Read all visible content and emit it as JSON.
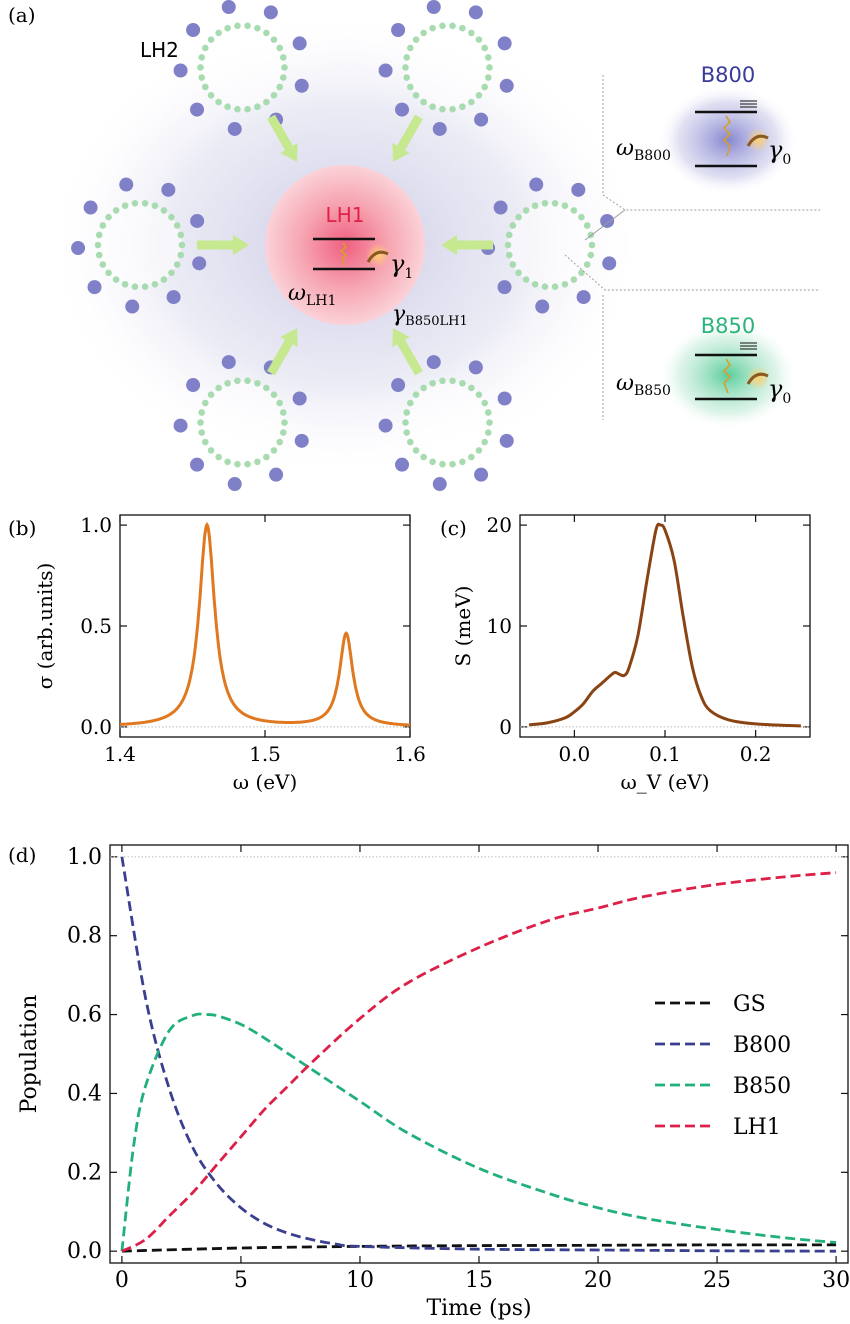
{
  "panels": {
    "a": "(a)",
    "b": "(b)",
    "c": "(c)",
    "d": "(d)"
  },
  "diagram": {
    "lh2_label": "LH2",
    "lh1_label": "LH1",
    "lh1_freq": "ω",
    "lh1_freq_sub": "LH1",
    "lh1_decay": "γ",
    "lh1_decay_sub": "1",
    "transfer_rate": "γ",
    "transfer_rate_sub": "B850LH1",
    "b800_label": "B800",
    "b800_freq": "ω",
    "b800_freq_sub": "B800",
    "b800_decay": "γ",
    "b800_decay_sub": "0",
    "b850_label": "B850",
    "b850_freq": "ω",
    "b850_freq_sub": "B850",
    "b850_decay": "γ",
    "b850_decay_sub": "0",
    "colors": {
      "lh1": "#e0204a",
      "b800": "#3a3a9a",
      "b850": "#2bb37a",
      "pigment": "#8080c8",
      "ring_dot": "#a8dcb0",
      "arrow": "#c6e88e"
    }
  },
  "chart_data": [
    {
      "type": "line",
      "panel": "(b)",
      "xlabel": "ω (eV)",
      "ylabel": "σ (arb.units)",
      "xlim": [
        1.4,
        1.6
      ],
      "ylim": [
        -0.05,
        1.05
      ],
      "xticks": [
        "1.4",
        "1.5",
        "1.6"
      ],
      "yticks": [
        "0.0",
        "0.5",
        "1.0"
      ],
      "color": "#e07820",
      "baseline": 0,
      "peaks": [
        {
          "center": 1.46,
          "height": 1.0,
          "width": 0.0065
        },
        {
          "center": 1.556,
          "height": 0.46,
          "width": 0.0055
        }
      ]
    },
    {
      "type": "line",
      "panel": "(c)",
      "xlabel": "ω_V (eV)",
      "ylabel": "S (meV)",
      "xlim": [
        -0.06,
        0.26
      ],
      "ylim": [
        -1,
        21
      ],
      "xticks": [
        "0.0",
        "0.1",
        "0.2"
      ],
      "yticks": [
        "0",
        "10",
        "20"
      ],
      "color": "#8a4414",
      "baseline": 0,
      "x": [
        -0.05,
        -0.03,
        -0.01,
        0.0,
        0.01,
        0.02,
        0.03,
        0.04,
        0.045,
        0.05,
        0.055,
        0.06,
        0.07,
        0.08,
        0.09,
        0.095,
        0.1,
        0.11,
        0.12,
        0.13,
        0.14,
        0.15,
        0.17,
        0.2,
        0.25
      ],
      "y": [
        0.2,
        0.4,
        0.9,
        1.5,
        2.3,
        3.5,
        4.3,
        5.1,
        5.4,
        5.2,
        5.1,
        5.8,
        9.0,
        14.5,
        19.5,
        20.0,
        19.5,
        16.5,
        11.0,
        6.0,
        3.0,
        1.6,
        0.7,
        0.3,
        0.1
      ]
    },
    {
      "type": "line",
      "panel": "(d)",
      "xlabel": "Time (ps)",
      "ylabel": "Population",
      "xlim": [
        -0.5,
        30.5
      ],
      "ylim": [
        -0.03,
        1.03
      ],
      "xticks": [
        "0",
        "5",
        "10",
        "15",
        "20",
        "25",
        "30"
      ],
      "yticks": [
        "0.0",
        "0.2",
        "0.4",
        "0.6",
        "0.8",
        "1.0"
      ],
      "reference_line": 1.0,
      "legend_position": "center-right",
      "series": [
        {
          "name": "GS",
          "color": "#111111",
          "x": [
            0,
            5,
            10,
            15,
            20,
            25,
            30
          ],
          "y": [
            0.0,
            0.008,
            0.012,
            0.014,
            0.015,
            0.016,
            0.016
          ]
        },
        {
          "name": "B800",
          "color": "#3a3f8f",
          "x": [
            0,
            1,
            2,
            3,
            4,
            5,
            6,
            7,
            8,
            9,
            10,
            15,
            20,
            25,
            30
          ],
          "y": [
            1.0,
            0.64,
            0.41,
            0.26,
            0.17,
            0.11,
            0.07,
            0.045,
            0.029,
            0.018,
            0.012,
            0.005,
            0.003,
            0.001,
            0.0
          ]
        },
        {
          "name": "B850",
          "color": "#22b07a",
          "x": [
            0,
            0.5,
            1,
            2,
            3,
            3.5,
            4,
            5,
            6,
            8,
            10,
            12,
            15,
            18,
            20,
            22,
            25,
            28,
            30
          ],
          "y": [
            0.0,
            0.27,
            0.42,
            0.56,
            0.598,
            0.6,
            0.597,
            0.575,
            0.54,
            0.46,
            0.38,
            0.3,
            0.21,
            0.145,
            0.11,
            0.083,
            0.055,
            0.033,
            0.022
          ]
        },
        {
          "name": "LH1",
          "color": "#dc2048",
          "x": [
            0,
            1,
            2,
            3,
            4,
            5,
            6,
            7,
            8,
            10,
            12,
            15,
            18,
            20,
            22,
            25,
            28,
            30
          ],
          "y": [
            0.0,
            0.03,
            0.09,
            0.15,
            0.22,
            0.29,
            0.36,
            0.42,
            0.48,
            0.59,
            0.68,
            0.77,
            0.84,
            0.87,
            0.9,
            0.93,
            0.95,
            0.96
          ]
        }
      ]
    }
  ]
}
